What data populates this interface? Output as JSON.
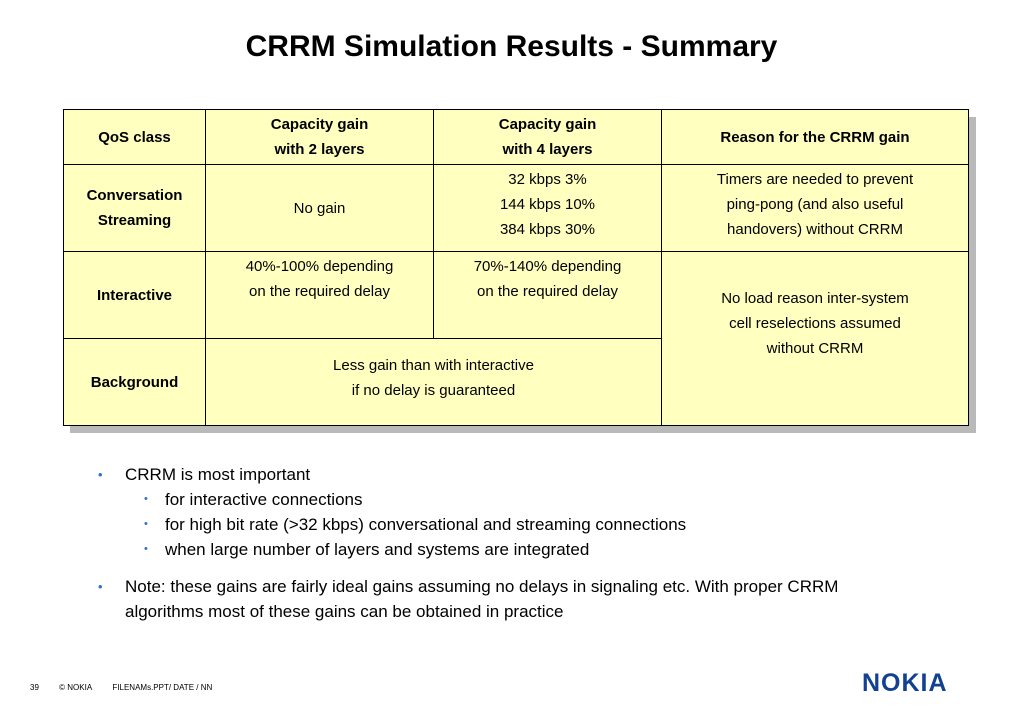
{
  "slide": {
    "title": "CRRM Simulation Results - Summary"
  },
  "table": {
    "headers": {
      "qos": "QoS class",
      "cap2_line1": "Capacity gain",
      "cap2_line2": "with 2 layers",
      "cap4_line1": "Capacity gain",
      "cap4_line2": "with 4 layers",
      "reason": "Reason for the CRRM gain"
    },
    "row1": {
      "class_line1": "Conversation",
      "class_line2": "Streaming",
      "cap2": "No gain",
      "cap4_line1": "32 kbps 3%",
      "cap4_line2": "144 kbps 10%",
      "cap4_line3": "384 kbps 30%",
      "reason_line1": "Timers are needed to prevent",
      "reason_line2": "ping-pong (and also useful",
      "reason_line3": "handovers) without CRRM"
    },
    "row2": {
      "class": "Interactive",
      "cap2_line1": "40%-100% depending",
      "cap2_line2": "on the required delay",
      "cap4_line1": "70%-140% depending",
      "cap4_line2": "on the required delay",
      "reason_line1": "No load reason inter-system",
      "reason_line2": "cell reselections assumed",
      "reason_line3": "without CRRM"
    },
    "row3": {
      "class": "Background",
      "cap_line1": "Less gain than with interactive",
      "cap_line2": "if no delay is guaranteed"
    }
  },
  "bullets": {
    "b1": "CRRM is most important",
    "b1_sub1": "for interactive connections",
    "b1_sub2": "for high bit rate (>32 kbps) conversational and streaming connections",
    "b1_sub3": "when large number of layers and systems are integrated",
    "b2_line1": "Note: these gains are fairly ideal gains assuming no delays in signaling etc. With proper CRRM",
    "b2_line2": "algorithms most of these gains can be obtained in practice"
  },
  "footer": {
    "page": "39",
    "copyright": "© NOKIA",
    "file": "FILENAMs.PPT/ DATE / NN"
  },
  "logo": {
    "text": "NOKIA",
    "color": "#124191"
  },
  "colors": {
    "table_fill": "#ffffc0",
    "bullet": "#2e6fd0"
  }
}
